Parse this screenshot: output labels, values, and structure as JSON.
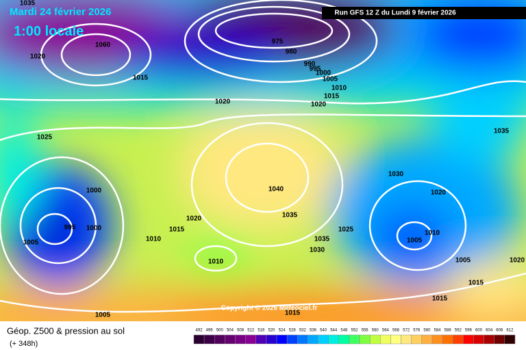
{
  "header": {
    "date": "Mardi 24 février 2026",
    "time": "1:00 locale",
    "run": "Run GFS 12 Z du Lundi 9 février 2026"
  },
  "copyright": "Copyright © 2026 Meteociel.fr",
  "footer": {
    "title": "Géop. Z500 & pression au sol",
    "lead": "(+ 348h)"
  },
  "isobar_labels": [
    "1035",
    "1020",
    "1060",
    "1015",
    "1020",
    "1025",
    "975",
    "980",
    "990",
    "995",
    "1000",
    "1005",
    "1010",
    "1015",
    "1020",
    "1035",
    "1030",
    "1020",
    "1000",
    "995",
    "1000",
    "1005",
    "1040",
    "1035",
    "1020",
    "1015",
    "1010",
    "1025",
    "1035",
    "1030",
    "1010",
    "1005",
    "1010",
    "1005",
    "1020",
    "1015",
    "1015",
    "1015",
    "1005"
  ],
  "scale": {
    "values": [
      492,
      496,
      500,
      504,
      508,
      512,
      516,
      520,
      524,
      528,
      532,
      536,
      540,
      544,
      548,
      552,
      556,
      560,
      564,
      568,
      572,
      576,
      580,
      584,
      588,
      592,
      596,
      600,
      604,
      608,
      612
    ],
    "colors": [
      "#2b0030",
      "#3d0048",
      "#52005e",
      "#650070",
      "#780084",
      "#8a0096",
      "#5000b4",
      "#2800d0",
      "#0000ff",
      "#0040ff",
      "#0078ff",
      "#00a8ff",
      "#00d0ff",
      "#00f0e0",
      "#00ffa0",
      "#40ff60",
      "#80ff40",
      "#c0ff40",
      "#f0ff60",
      "#ffff80",
      "#ffe880",
      "#ffd060",
      "#ffb040",
      "#ff9020",
      "#ff7000",
      "#ff4000",
      "#ff0000",
      "#d80000",
      "#a80000",
      "#700000",
      "#300000"
    ]
  }
}
